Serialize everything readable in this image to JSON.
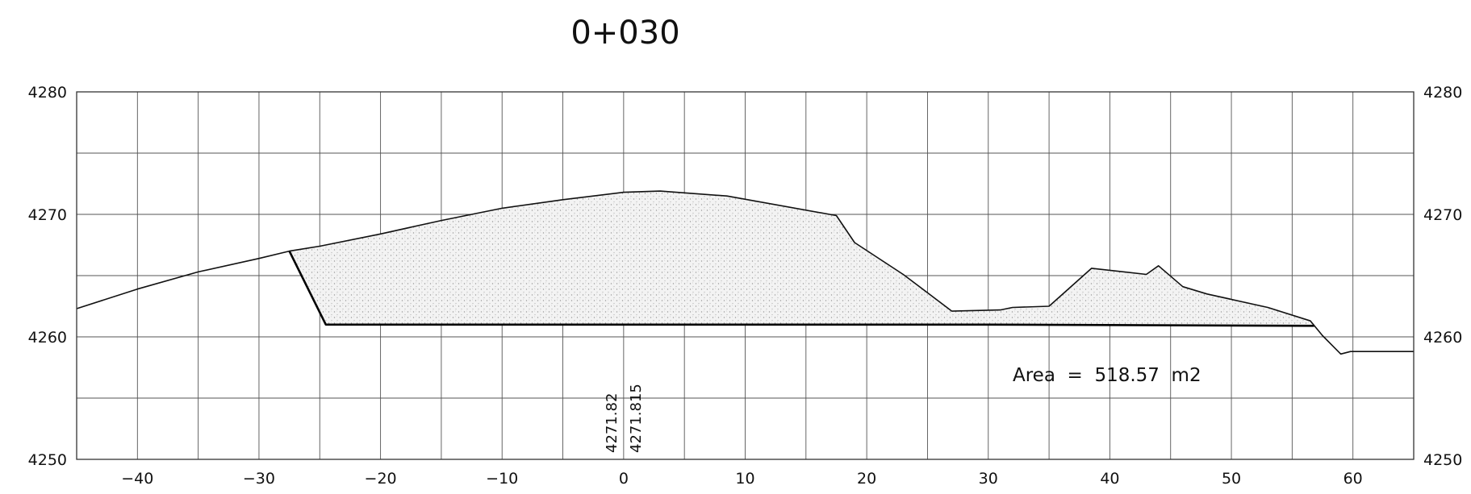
{
  "chart_data": {
    "type": "line",
    "title": "0+030",
    "xlim": [
      -45,
      65
    ],
    "ylim": [
      4250,
      4280
    ],
    "x_ticks": [
      -40,
      -30,
      -20,
      -10,
      0,
      10,
      20,
      30,
      40,
      50,
      60
    ],
    "y_ticks": [
      4250,
      4260,
      4270,
      4280
    ],
    "x_grid": [
      -40,
      -35,
      -30,
      -25,
      -20,
      -15,
      -10,
      -5,
      0,
      5,
      10,
      15,
      20,
      25,
      30,
      35,
      40,
      45,
      50,
      55,
      60
    ],
    "y_grid": [
      4255,
      4260,
      4265,
      4270,
      4275
    ],
    "grid": true,
    "annotation": "Area  =  518.57  m2",
    "elevation_labels": [
      "4271.82",
      "4271.815"
    ],
    "series": [
      {
        "role": "existing_ground",
        "x": [
          -45,
          -40,
          -35,
          -30,
          -27.5,
          -25,
          -20,
          -15,
          -10,
          -5,
          0,
          3,
          8.5,
          17.5,
          19,
          23,
          27,
          31,
          32,
          35,
          38.5,
          43,
          44,
          46,
          48,
          53,
          56.5,
          57.5,
          59,
          59.8,
          65
        ],
        "y": [
          4262.3,
          4263.9,
          4265.3,
          4266.4,
          4267.0,
          4267.4,
          4268.4,
          4269.5,
          4270.5,
          4271.2,
          4271.8,
          4271.9,
          4271.5,
          4269.9,
          4267.7,
          4265.1,
          4262.1,
          4262.2,
          4262.4,
          4262.5,
          4265.6,
          4265.1,
          4265.8,
          4264.1,
          4263.5,
          4262.4,
          4261.3,
          4260.1,
          4258.6,
          4258.8,
          4258.8
        ]
      },
      {
        "role": "design_section",
        "x": [
          -27.5,
          -24.5,
          -10,
          0,
          10,
          30,
          56.8
        ],
        "y": [
          4267.0,
          4261.0,
          4261.0,
          4261.0,
          4261.0,
          4261.0,
          4260.9
        ]
      }
    ]
  }
}
